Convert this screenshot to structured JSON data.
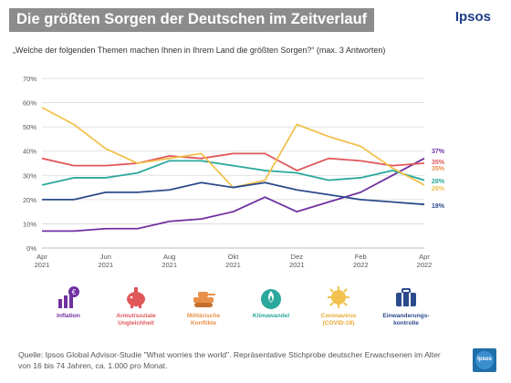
{
  "header": {
    "title": "Die größten Sorgen der Deutschen im Zeitverlauf",
    "brand": "Ipsos",
    "question": "„Welche der folgenden Themen machen Ihnen in Ihrem Land die größten Sorgen?“ (max. 3 Antworten)"
  },
  "chart_data": {
    "type": "line",
    "x_labels": [
      "Apr\n2021",
      "Jun\n2021",
      "Aug\n2021",
      "Okt\n2021",
      "Dez\n2021",
      "Feb\n2022",
      "Apr\n2022"
    ],
    "y_ticks": [
      "0%",
      "10%",
      "20%",
      "30%",
      "40%",
      "50%",
      "60%",
      "70%"
    ],
    "ylim": [
      0,
      70
    ],
    "n_points": 13,
    "grid": "horizontal",
    "series": [
      {
        "name": "Inflation",
        "color": "#7030a0",
        "end_label": "37%",
        "values": [
          7,
          7,
          8,
          8,
          11,
          12,
          15,
          21,
          15,
          19,
          23,
          30,
          37
        ]
      },
      {
        "name": "Armut/soziale Ungleichheit",
        "color": "#e0575a",
        "end_label": "35%",
        "values": [
          37,
          34,
          34,
          35,
          38,
          37,
          39,
          39,
          32,
          37,
          36,
          34,
          35
        ]
      },
      {
        "name": "Militärische Konflikte",
        "color": "#e8914a",
        "end_label": "35%",
        "values": [
          null,
          null,
          null,
          null,
          null,
          null,
          null,
          null,
          null,
          null,
          null,
          null,
          35
        ]
      },
      {
        "name": "Klimawandel",
        "color": "#2aa89b",
        "end_label": "28%",
        "values": [
          26,
          29,
          29,
          31,
          36,
          36,
          34,
          32,
          31,
          28,
          29,
          32,
          28
        ]
      },
      {
        "name": "Coronavirus (COVID-19)",
        "color": "#f2c14e",
        "end_label": "26%",
        "values": [
          58,
          51,
          41,
          35,
          37,
          39,
          25,
          28,
          51,
          46,
          42,
          33,
          26
        ]
      },
      {
        "name": "Einwanderungskontrolle",
        "color": "#2b4b8c",
        "end_label": "18%",
        "values": [
          20,
          20,
          23,
          23,
          24,
          27,
          25,
          27,
          24,
          22,
          20,
          19,
          18
        ]
      }
    ]
  },
  "legend": [
    {
      "label": "Inflation",
      "color": "#7030a0",
      "icon": "inflation-chart-icon"
    },
    {
      "label": "Armut/soziale\nUngleichheit",
      "color": "#e0575a",
      "icon": "poverty-piggy-icon"
    },
    {
      "label": "Militärische\nKonflikte",
      "color": "#e8914a",
      "icon": "tank-icon"
    },
    {
      "label": "Klimawandel",
      "color": "#2aa89b",
      "icon": "globe-flame-icon"
    },
    {
      "label": "Coronavirus\n(COVID-19)",
      "color": "#f2c14e",
      "icon": "virus-icon"
    },
    {
      "label": "Einwanderungs-\nkontrolle",
      "color": "#2b4b8c",
      "icon": "suitcase-icon"
    }
  ],
  "footer": {
    "source": "Quelle:  Ipsos Global Advisor-Studie \"What worries the world\". Repräsentative Stichprobe deutscher Erwachsenen im Alter von 16 bis 74 Jahren, ca. 1.000 pro Monat.",
    "logo_text": "Ipsos"
  }
}
